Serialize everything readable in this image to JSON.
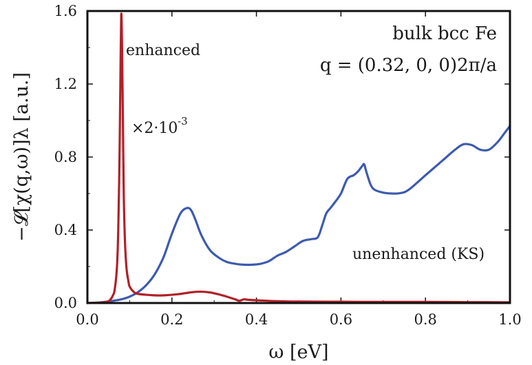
{
  "chart_data": {
    "type": "line",
    "title": "",
    "xlabel": "ω [eV]",
    "ylabel": "−𝓛[χ(q,ω)]λ [a.u.]",
    "xlim": [
      0.0,
      1.0
    ],
    "ylim": [
      0.0,
      1.6
    ],
    "xticks": [
      "0.0",
      "0.2",
      "0.4",
      "0.6",
      "0.8",
      "1.0"
    ],
    "yticks": [
      "0.0",
      "0.4",
      "0.8",
      "1.2",
      "1.6"
    ],
    "grid": false,
    "annotations": {
      "system": "bulk bcc Fe",
      "q_vector": "q = (0.32, 0, 0)2π/a",
      "enhanced_label": "enhanced",
      "scale_factor": "×2·10",
      "scale_exponent": "-3",
      "unenhanced_label": "unenhanced (KS)"
    },
    "series": [
      {
        "name": "enhanced",
        "color": "#b22028",
        "x": [
          0.0,
          0.03,
          0.05,
          0.06,
          0.065,
          0.07,
          0.073,
          0.076,
          0.078,
          0.08,
          0.082,
          0.084,
          0.086,
          0.088,
          0.09,
          0.093,
          0.097,
          0.1,
          0.11,
          0.12,
          0.14,
          0.16,
          0.18,
          0.2,
          0.22,
          0.25,
          0.27,
          0.29,
          0.31,
          0.33,
          0.35,
          0.36,
          0.37,
          0.38,
          0.4,
          0.45,
          0.5,
          0.6,
          0.7,
          0.8,
          0.9,
          1.0
        ],
        "y": [
          0.0,
          0.002,
          0.01,
          0.04,
          0.08,
          0.2,
          0.4,
          0.8,
          1.2,
          1.58,
          1.4,
          1.0,
          0.6,
          0.4,
          0.28,
          0.18,
          0.12,
          0.09,
          0.06,
          0.05,
          0.045,
          0.042,
          0.042,
          0.045,
          0.05,
          0.06,
          0.062,
          0.058,
          0.048,
          0.035,
          0.02,
          0.012,
          0.02,
          0.018,
          0.015,
          0.01,
          0.008,
          0.007,
          0.006,
          0.006,
          0.005,
          0.004
        ]
      },
      {
        "name": "unenhanced (KS)",
        "color": "#3d5bad",
        "x": [
          0.0,
          0.02,
          0.04,
          0.06,
          0.08,
          0.1,
          0.12,
          0.14,
          0.16,
          0.18,
          0.2,
          0.22,
          0.235,
          0.245,
          0.255,
          0.27,
          0.29,
          0.31,
          0.33,
          0.35,
          0.37,
          0.39,
          0.41,
          0.43,
          0.45,
          0.47,
          0.49,
          0.51,
          0.53,
          0.545,
          0.555,
          0.565,
          0.575,
          0.585,
          0.6,
          0.615,
          0.63,
          0.64,
          0.65,
          0.655,
          0.66,
          0.67,
          0.68,
          0.7,
          0.72,
          0.74,
          0.76,
          0.8,
          0.84,
          0.87,
          0.89,
          0.91,
          0.93,
          0.95,
          0.97,
          0.99,
          1.0
        ],
        "y": [
          0.0,
          0.002,
          0.006,
          0.012,
          0.02,
          0.035,
          0.06,
          0.1,
          0.16,
          0.25,
          0.38,
          0.49,
          0.52,
          0.51,
          0.46,
          0.37,
          0.29,
          0.25,
          0.225,
          0.215,
          0.21,
          0.21,
          0.215,
          0.23,
          0.26,
          0.28,
          0.31,
          0.34,
          0.35,
          0.36,
          0.42,
          0.49,
          0.52,
          0.55,
          0.6,
          0.68,
          0.7,
          0.72,
          0.75,
          0.76,
          0.72,
          0.65,
          0.62,
          0.605,
          0.6,
          0.602,
          0.62,
          0.7,
          0.78,
          0.84,
          0.87,
          0.865,
          0.84,
          0.84,
          0.88,
          0.94,
          0.97
        ]
      }
    ]
  }
}
